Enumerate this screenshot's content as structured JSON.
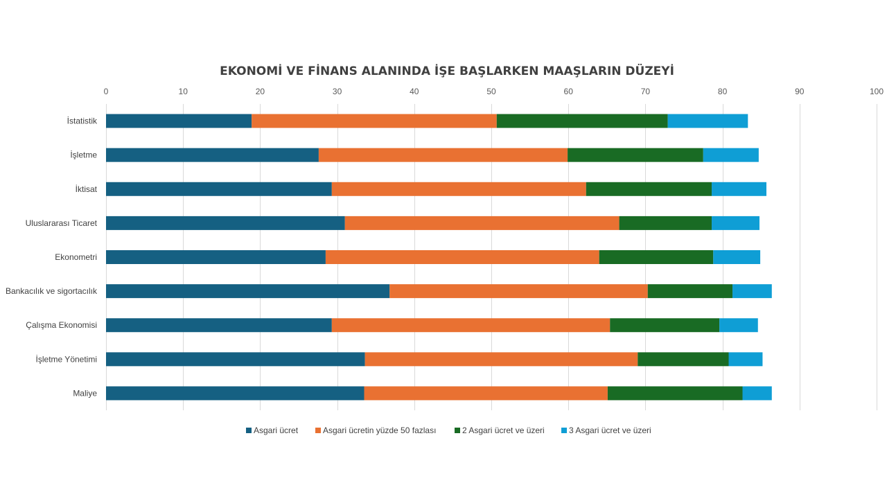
{
  "chart_data": {
    "type": "bar",
    "orientation": "horizontal",
    "stacked": true,
    "title": "EKONOMİ VE FİNANS ALANINDA İŞE BAŞLARKEN MAAŞLARIN DÜZEYİ",
    "xlabel": "",
    "ylabel": "",
    "xlim": [
      0,
      100
    ],
    "xticks": [
      0,
      10,
      20,
      30,
      40,
      50,
      60,
      70,
      80,
      90,
      100
    ],
    "grid": true,
    "legend_position": "bottom",
    "categories": [
      "İstatistik",
      "İşletme",
      "İktisat",
      "Uluslararası Ticaret",
      "Ekonometri",
      "Bankacılık ve sigortacılık",
      "Çalışma Ekonomisi",
      "İşletme Yönetimi",
      "Maliye"
    ],
    "series": [
      {
        "name": "Asgari ücret",
        "color": "#156082",
        "values": [
          18.9,
          27.6,
          29.3,
          31.0,
          28.5,
          36.8,
          29.3,
          33.6,
          33.5
        ]
      },
      {
        "name": "Asgari ücretin yüzde 50 fazlası",
        "color": "#E97132",
        "values": [
          31.8,
          32.3,
          33.0,
          35.6,
          35.5,
          33.5,
          36.1,
          35.4,
          31.6
        ]
      },
      {
        "name": "2 Asgari ücret ve üzeri",
        "color": "#196B24",
        "values": [
          22.2,
          17.6,
          16.3,
          12.0,
          14.8,
          11.0,
          14.2,
          11.8,
          17.5
        ]
      },
      {
        "name": "3 Asgari ücret ve üzeri",
        "color": "#0F9ED5",
        "values": [
          10.4,
          7.2,
          7.1,
          6.2,
          6.1,
          5.1,
          5.0,
          4.4,
          3.8
        ]
      }
    ]
  }
}
